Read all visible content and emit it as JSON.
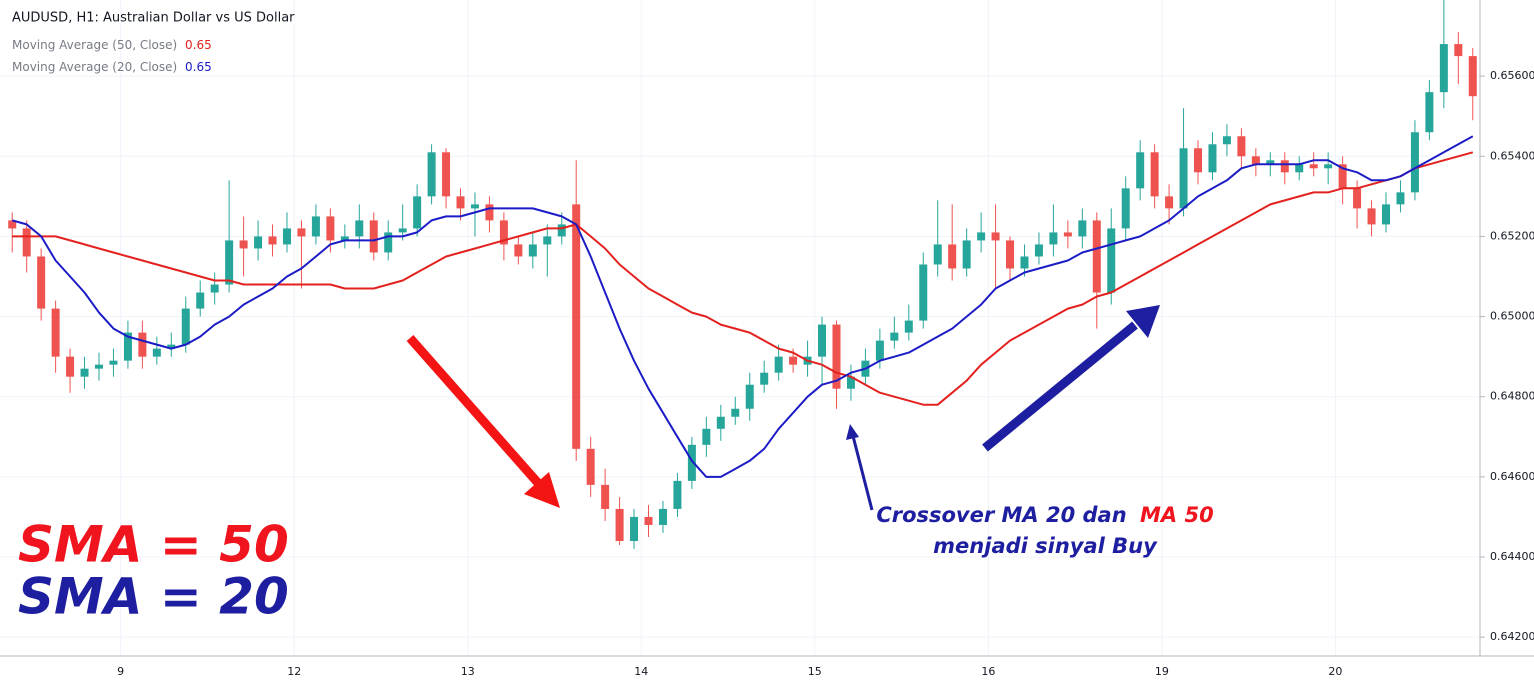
{
  "chart_data": {
    "type": "candlestick",
    "title": "AUDUSD, H1: Australian Dollar vs US Dollar",
    "categories": [
      null,
      null,
      null,
      null,
      null,
      null,
      null,
      null,
      "9",
      null,
      null,
      null,
      null,
      null,
      null,
      null,
      null,
      null,
      null,
      null,
      "12",
      null,
      null,
      null,
      null,
      null,
      null,
      null,
      null,
      null,
      null,
      null,
      "13",
      null,
      null,
      null,
      null,
      null,
      null,
      null,
      null,
      null,
      null,
      null,
      "14",
      null,
      null,
      null,
      null,
      null,
      null,
      null,
      null,
      null,
      null,
      null,
      "15",
      null,
      null,
      null,
      null,
      null,
      null,
      null,
      null,
      null,
      null,
      null,
      "16",
      null,
      null,
      null,
      null,
      null,
      null,
      null,
      null,
      null,
      null,
      null,
      "19",
      null,
      null,
      null,
      null,
      null,
      null,
      null,
      null,
      null,
      null,
      null,
      "20",
      null,
      null,
      null,
      null,
      null,
      null,
      null,
      null,
      null
    ],
    "open": [
      0.6524,
      0.6522,
      0.6515,
      0.6502,
      0.649,
      0.6485,
      0.6487,
      0.6488,
      0.6489,
      0.6496,
      0.649,
      0.6492,
      0.6493,
      0.6502,
      0.6506,
      0.6508,
      0.6519,
      0.6517,
      0.652,
      0.6518,
      0.6522,
      0.652,
      0.6525,
      0.6519,
      0.652,
      0.6524,
      0.6516,
      0.6521,
      0.6522,
      0.653,
      0.6541,
      0.653,
      0.6527,
      0.6528,
      0.6524,
      0.6518,
      0.6515,
      0.6518,
      0.652,
      0.6528,
      0.6467,
      0.6458,
      0.6452,
      0.6444,
      0.645,
      0.6448,
      0.6452,
      0.6459,
      0.6468,
      0.6472,
      0.6475,
      0.6477,
      0.6483,
      0.6486,
      0.649,
      0.6488,
      0.649,
      0.6498,
      0.6482,
      0.6485,
      0.6489,
      0.6494,
      0.6496,
      0.6499,
      0.6513,
      0.6518,
      0.6512,
      0.6519,
      0.6521,
      0.6519,
      0.6512,
      0.6515,
      0.6518,
      0.6521,
      0.652,
      0.6524,
      0.6506,
      0.6522,
      0.6532,
      0.6541,
      0.653,
      0.6527,
      0.6542,
      0.6536,
      0.6543,
      0.6545,
      0.654,
      0.6538,
      0.6539,
      0.6536,
      0.6538,
      0.6537,
      0.6538,
      0.6532,
      0.6527,
      0.6523,
      0.6528,
      0.6531,
      0.6546,
      0.6556,
      0.6568,
      0.6565
    ],
    "high": [
      0.6526,
      0.6524,
      0.6517,
      0.6504,
      0.6492,
      0.649,
      0.6491,
      0.6492,
      0.6499,
      0.6499,
      0.6495,
      0.6496,
      0.6505,
      0.6509,
      0.6511,
      0.6534,
      0.6525,
      0.6524,
      0.6523,
      0.6526,
      0.6524,
      0.6528,
      0.6527,
      0.6523,
      0.6528,
      0.6526,
      0.6524,
      0.6528,
      0.6533,
      0.6543,
      0.6542,
      0.6532,
      0.6531,
      0.653,
      0.6526,
      0.652,
      0.6521,
      0.6523,
      0.6526,
      0.6539,
      0.647,
      0.6462,
      0.6455,
      0.6452,
      0.6453,
      0.6454,
      0.6461,
      0.647,
      0.6475,
      0.6478,
      0.648,
      0.6486,
      0.6489,
      0.6493,
      0.6492,
      0.6494,
      0.65,
      0.6499,
      0.6488,
      0.6492,
      0.6497,
      0.65,
      0.6503,
      0.6516,
      0.6529,
      0.6528,
      0.6522,
      0.6526,
      0.6528,
      0.652,
      0.6518,
      0.6521,
      0.6528,
      0.6524,
      0.6527,
      0.6526,
      0.6527,
      0.6535,
      0.6544,
      0.6543,
      0.6533,
      0.6552,
      0.6544,
      0.6546,
      0.6548,
      0.6547,
      0.6542,
      0.6541,
      0.6541,
      0.654,
      0.6541,
      0.6541,
      0.654,
      0.6534,
      0.6529,
      0.6531,
      0.6534,
      0.6549,
      0.6559,
      0.6579,
      0.6571,
      0.6567
    ],
    "low": [
      0.6516,
      0.6511,
      0.6499,
      0.6486,
      0.6481,
      0.6482,
      0.6484,
      0.6485,
      0.6487,
      0.6487,
      0.6488,
      0.649,
      0.6491,
      0.65,
      0.6503,
      0.6506,
      0.651,
      0.6514,
      0.6515,
      0.6516,
      0.6507,
      0.6518,
      0.6516,
      0.6517,
      0.6517,
      0.6514,
      0.6514,
      0.6519,
      0.652,
      0.6528,
      0.6527,
      0.6524,
      0.652,
      0.6521,
      0.6514,
      0.6513,
      0.6512,
      0.651,
      0.6518,
      0.6464,
      0.6455,
      0.6449,
      0.6443,
      0.6442,
      0.6445,
      0.6446,
      0.645,
      0.6457,
      0.6465,
      0.6469,
      0.6473,
      0.6474,
      0.6481,
      0.6484,
      0.6486,
      0.6485,
      0.6483,
      0.6477,
      0.6479,
      0.6483,
      0.6487,
      0.6492,
      0.6494,
      0.6497,
      0.651,
      0.6509,
      0.651,
      0.6516,
      0.6507,
      0.6509,
      0.651,
      0.6513,
      0.6515,
      0.6517,
      0.6517,
      0.6497,
      0.6503,
      0.6519,
      0.6529,
      0.6527,
      0.6523,
      0.6525,
      0.6533,
      0.6534,
      0.654,
      0.6537,
      0.6535,
      0.6535,
      0.6533,
      0.6534,
      0.6535,
      0.6533,
      0.6528,
      0.6522,
      0.652,
      0.6521,
      0.6526,
      0.6529,
      0.6544,
      0.6552,
      0.6558,
      0.6549
    ],
    "close": [
      0.6522,
      0.6515,
      0.6502,
      0.649,
      0.6485,
      0.6487,
      0.6488,
      0.6489,
      0.6496,
      0.649,
      0.6492,
      0.6493,
      0.6502,
      0.6506,
      0.6508,
      0.6519,
      0.6517,
      0.652,
      0.6518,
      0.6522,
      0.652,
      0.6525,
      0.6519,
      0.652,
      0.6524,
      0.6516,
      0.6521,
      0.6522,
      0.653,
      0.6541,
      0.653,
      0.6527,
      0.6528,
      0.6524,
      0.6518,
      0.6515,
      0.6518,
      0.652,
      0.6523,
      0.6467,
      0.6458,
      0.6452,
      0.6444,
      0.645,
      0.6448,
      0.6452,
      0.6459,
      0.6468,
      0.6472,
      0.6475,
      0.6477,
      0.6483,
      0.6486,
      0.649,
      0.6488,
      0.649,
      0.6498,
      0.6482,
      0.6485,
      0.6489,
      0.6494,
      0.6496,
      0.6499,
      0.6513,
      0.6518,
      0.6512,
      0.6519,
      0.6521,
      0.6519,
      0.6512,
      0.6515,
      0.6518,
      0.6521,
      0.652,
      0.6524,
      0.6506,
      0.6522,
      0.6532,
      0.6541,
      0.653,
      0.6527,
      0.6542,
      0.6536,
      0.6543,
      0.6545,
      0.654,
      0.6538,
      0.6539,
      0.6536,
      0.6538,
      0.6537,
      0.6538,
      0.6532,
      0.6527,
      0.6523,
      0.6528,
      0.6531,
      0.6546,
      0.6556,
      0.6568,
      0.6565,
      0.6555
    ],
    "up_color": "#26a69a",
    "down_color": "#ef5350",
    "series": [
      {
        "name": "Moving Average (50, Close)",
        "color": "#e3211f",
        "legend_value": 0.65,
        "values": [
          0.652,
          0.652,
          0.652,
          0.652,
          0.6519,
          0.6518,
          0.6517,
          0.6516,
          0.6515,
          0.6514,
          0.6513,
          0.6512,
          0.6511,
          0.651,
          0.6509,
          0.6509,
          0.6508,
          0.6508,
          0.6508,
          0.6508,
          0.6508,
          0.6508,
          0.6508,
          0.6507,
          0.6507,
          0.6507,
          0.6508,
          0.6509,
          0.6511,
          0.6513,
          0.6515,
          0.6516,
          0.6517,
          0.6518,
          0.6519,
          0.652,
          0.6521,
          0.6522,
          0.6522,
          0.6523,
          0.652,
          0.6517,
          0.6513,
          0.651,
          0.6507,
          0.6505,
          0.6503,
          0.6501,
          0.65,
          0.6498,
          0.6497,
          0.6496,
          0.6494,
          0.6492,
          0.6491,
          0.6489,
          0.6488,
          0.6486,
          0.6485,
          0.6483,
          0.6481,
          0.648,
          0.6479,
          0.6478,
          0.6478,
          0.6481,
          0.6484,
          0.6488,
          0.6491,
          0.6494,
          0.6496,
          0.6498,
          0.65,
          0.6502,
          0.6503,
          0.6505,
          0.6506,
          0.6508,
          0.651,
          0.6512,
          0.6514,
          0.6516,
          0.6518,
          0.652,
          0.6522,
          0.6524,
          0.6526,
          0.6528,
          0.6529,
          0.653,
          0.6531,
          0.6531,
          0.6532,
          0.6532,
          0.6533,
          0.6534,
          0.6535,
          0.6537,
          0.6538,
          0.6539,
          0.654,
          0.6541
        ]
      },
      {
        "name": "Moving Average (20, Close)",
        "color": "#1c1cc6",
        "legend_value": 0.65,
        "values": [
          0.6524,
          0.6523,
          0.652,
          0.6514,
          0.651,
          0.6506,
          0.6501,
          0.6497,
          0.6495,
          0.6494,
          0.6493,
          0.6492,
          0.6493,
          0.6495,
          0.6498,
          0.65,
          0.6503,
          0.6505,
          0.6507,
          0.651,
          0.6512,
          0.6515,
          0.6518,
          0.6519,
          0.6519,
          0.6519,
          0.652,
          0.652,
          0.6521,
          0.6524,
          0.6525,
          0.6525,
          0.6526,
          0.6527,
          0.6527,
          0.6527,
          0.6527,
          0.6526,
          0.6525,
          0.6523,
          0.6515,
          0.6506,
          0.6497,
          0.6489,
          0.6482,
          0.6476,
          0.647,
          0.6464,
          0.646,
          0.646,
          0.6462,
          0.6464,
          0.6467,
          0.6472,
          0.6476,
          0.648,
          0.6483,
          0.6484,
          0.6486,
          0.6487,
          0.6489,
          0.649,
          0.6491,
          0.6493,
          0.6495,
          0.6497,
          0.65,
          0.6503,
          0.6507,
          0.6509,
          0.6511,
          0.6512,
          0.6513,
          0.6514,
          0.6516,
          0.6517,
          0.6518,
          0.6519,
          0.652,
          0.6522,
          0.6524,
          0.6527,
          0.653,
          0.6532,
          0.6534,
          0.6537,
          0.6538,
          0.6538,
          0.6538,
          0.6538,
          0.6539,
          0.6539,
          0.6537,
          0.6536,
          0.6534,
          0.6534,
          0.6535,
          0.6537,
          0.6539,
          0.6541,
          0.6543,
          0.6545
        ]
      }
    ],
    "ylim": [
      0.64153,
      0.6579
    ],
    "yticks": [
      {
        "value": 0.642,
        "label": "0.64200"
      },
      {
        "value": 0.644,
        "label": "0.64400"
      },
      {
        "value": 0.646,
        "label": "0.64600"
      },
      {
        "value": 0.648,
        "label": "0.64800"
      },
      {
        "value": 0.65,
        "label": "0.65000"
      },
      {
        "value": 0.652,
        "label": "0.65200"
      },
      {
        "value": 0.654,
        "label": "0.65400"
      },
      {
        "value": 0.656,
        "label": "0.65600"
      }
    ],
    "grid": true,
    "annotations": [
      {
        "text": "SMA = 50",
        "color": "#f0141e"
      },
      {
        "text": "SMA = 20",
        "color": "#1e1ea0"
      },
      {
        "text": "Crossover MA 20 dan",
        "color": "#1e1ea0"
      },
      {
        "text": "MA 50",
        "color": "#f0141e"
      },
      {
        "text": "menjadi sinyal Buy",
        "color": "#1e1ea0"
      }
    ]
  }
}
